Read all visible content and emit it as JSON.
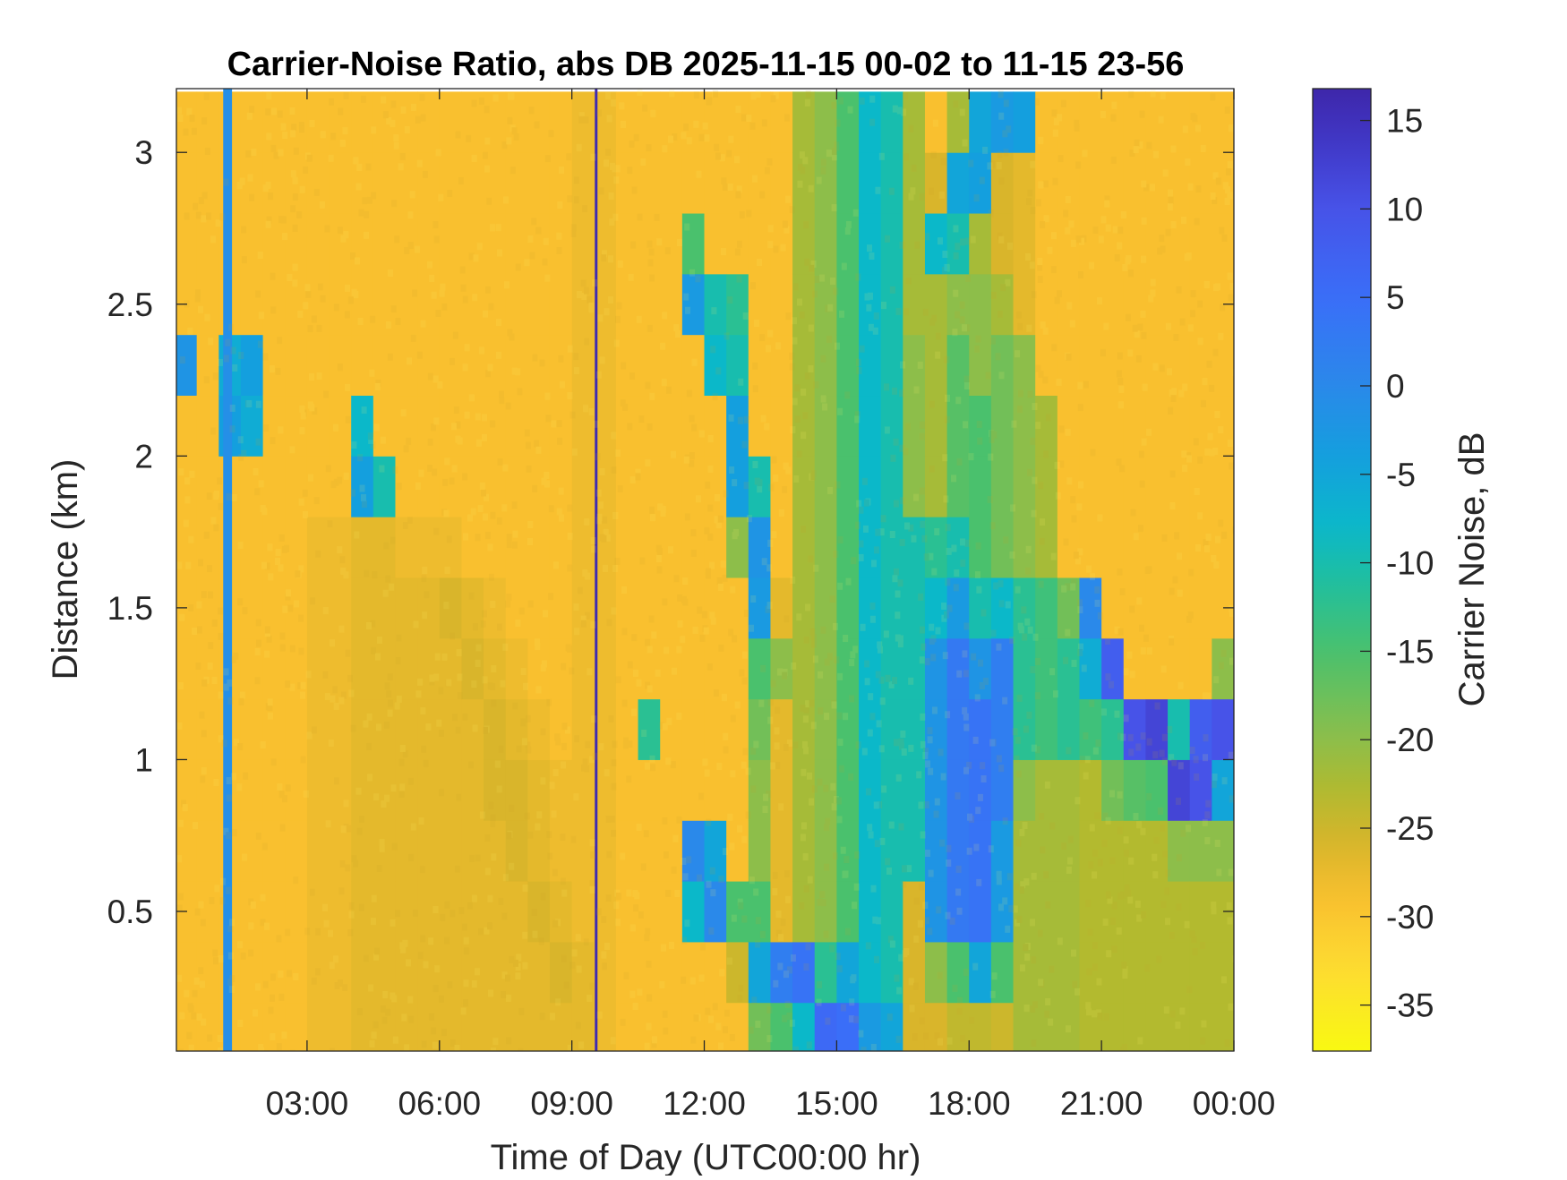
{
  "chart_data": {
    "type": "heatmap",
    "title": "Carrier-Noise Ratio, abs DB 2025-11-15 00-02 to 11-15 23-56",
    "xlabel": "Time of Day (UTC00:00 hr)",
    "ylabel": "Distance (km)",
    "colorbar_label": "Carrier Noise, dB",
    "colormap": "parula (reversed: yellow = low, dark blue = high)",
    "xlim_hr": [
      0.04,
      24.0
    ],
    "ylim_km": [
      0.04,
      3.21
    ],
    "clim_db": [
      -37.6,
      16.8
    ],
    "x_ticks": [
      3,
      6,
      9,
      12,
      15,
      18,
      21,
      24
    ],
    "x_tick_labels": [
      "03:00",
      "06:00",
      "09:00",
      "12:00",
      "15:00",
      "18:00",
      "21:00",
      "00:00"
    ],
    "y_ticks": [
      0.5,
      1,
      1.5,
      2,
      2.5,
      3
    ],
    "y_tick_labels": [
      "0.5",
      "1",
      "1.5",
      "2",
      "2.5",
      "3"
    ],
    "c_ticks": [
      15,
      10,
      5,
      0,
      -5,
      -10,
      -15,
      -20,
      -25,
      -30,
      -35
    ],
    "c_tick_labels": [
      "15",
      "10",
      "5",
      "0",
      "-5",
      "-10",
      "-15",
      "-20",
      "-25",
      "-30",
      "-35"
    ],
    "time_bin_hr": 0.5,
    "distance_bins_km": [
      0.1,
      0.3,
      0.5,
      0.7,
      0.9,
      1.1,
      1.3,
      1.5,
      1.7,
      1.9,
      2.1,
      2.3,
      2.5,
      2.7,
      2.9,
      3.1
    ],
    "z_by_time_db": [
      [
        -29,
        -29,
        -29,
        -29,
        -29,
        -29,
        -29,
        -29,
        -29,
        -29,
        -29,
        -2,
        -29,
        -29,
        -29,
        -29
      ],
      [
        -29,
        -29,
        -29,
        -29,
        -29,
        -29,
        -29,
        -29,
        -29,
        -29,
        -29,
        -29,
        -29,
        -29,
        -29,
        -29
      ],
      [
        -29,
        -29,
        -29,
        -29,
        -29,
        -29,
        -29,
        -29,
        -29,
        -29,
        -4,
        -6,
        -29,
        -29,
        -29,
        -29
      ],
      [
        -29,
        -29,
        -29,
        -29,
        -29,
        -29,
        -29,
        -29,
        -29,
        -29,
        -6,
        -4,
        -29,
        -29,
        -29,
        -29
      ],
      [
        -29,
        -29,
        -29,
        -29,
        -29,
        -29,
        -29,
        -29,
        -29,
        -29,
        -29,
        -29,
        -29,
        -29,
        -29,
        -29
      ],
      [
        -29,
        -29,
        -29,
        -29,
        -29,
        -29,
        -29,
        -29,
        -29,
        -29,
        -29,
        -29,
        -29,
        -29,
        -29,
        -29
      ],
      [
        -28,
        -28,
        -28,
        -28,
        -28,
        -28,
        -28,
        -28,
        -28,
        -29,
        -29,
        -29,
        -29,
        -29,
        -29,
        -29
      ],
      [
        -28,
        -28,
        -28,
        -28,
        -28,
        -28,
        -28,
        -28,
        -28,
        -29,
        -29,
        -29,
        -29,
        -29,
        -29,
        -29
      ],
      [
        -27,
        -27,
        -27,
        -27,
        -27,
        -27,
        -27,
        -27,
        -27,
        -4,
        -8,
        -29,
        -29,
        -29,
        -29,
        -29
      ],
      [
        -27,
        -27,
        -27,
        -27,
        -27,
        -27,
        -27,
        -27,
        -27,
        -10,
        -29,
        -29,
        -29,
        -29,
        -29,
        -29
      ],
      [
        -27,
        -27,
        -27,
        -27,
        -27,
        -27,
        -27,
        -27,
        -28,
        -29,
        -29,
        -29,
        -29,
        -29,
        -29,
        -29
      ],
      [
        -27,
        -27,
        -27,
        -27,
        -27,
        -27,
        -27,
        -27,
        -28,
        -29,
        -29,
        -29,
        -29,
        -29,
        -29,
        -29
      ],
      [
        -27,
        -27,
        -27,
        -27,
        -27,
        -27,
        -27,
        -26,
        -28,
        -29,
        -29,
        -29,
        -29,
        -29,
        -29,
        -29
      ],
      [
        -27,
        -27,
        -27,
        -27,
        -27,
        -27,
        -26,
        -27,
        -29,
        -29,
        -29,
        -29,
        -29,
        -29,
        -29,
        -29
      ],
      [
        -27,
        -27,
        -27,
        -27,
        -26,
        -26,
        -27,
        -28,
        -29,
        -29,
        -29,
        -29,
        -29,
        -29,
        -29,
        -29
      ],
      [
        -27,
        -27,
        -27,
        -26,
        -26,
        -27,
        -28,
        -29,
        -29,
        -29,
        -29,
        -29,
        -29,
        -29,
        -29,
        -29
      ],
      [
        -27,
        -27,
        -26,
        -27,
        -27,
        -28,
        -29,
        -29,
        -29,
        -29,
        -29,
        -29,
        -29,
        -29,
        -29,
        -29
      ],
      [
        -27,
        -26,
        -27,
        -28,
        -28,
        -29,
        -29,
        -29,
        -29,
        -29,
        -29,
        -29,
        -29,
        -29,
        -29,
        -29
      ],
      [
        -27,
        -27,
        -28,
        -28,
        -28,
        -28,
        -28,
        -28,
        -28,
        -28,
        -28,
        -28,
        -28,
        -28,
        -28,
        -28
      ],
      [
        -28,
        -28,
        -28,
        -28,
        -28,
        -28,
        -28,
        -28,
        -28,
        -28,
        -28,
        -28,
        -28,
        -28,
        -28,
        -28
      ],
      [
        -29,
        -29,
        -29,
        -29,
        -29,
        -29,
        -29,
        -29,
        -29,
        -29,
        -29,
        -29,
        -29,
        -29,
        -29,
        -29
      ],
      [
        -29,
        -29,
        -29,
        -29,
        -29,
        -12,
        -29,
        -29,
        -29,
        -29,
        -29,
        -29,
        -29,
        -29,
        -29,
        -29
      ],
      [
        -29,
        -29,
        -29,
        -29,
        -29,
        -29,
        -29,
        -29,
        -29,
        -29,
        -29,
        -29,
        -29,
        -29,
        -29,
        -29
      ],
      [
        -29,
        -29,
        -8,
        0,
        -29,
        -29,
        -29,
        -29,
        -29,
        -29,
        -29,
        -29,
        -3,
        -15,
        -29,
        -29
      ],
      [
        -29,
        -29,
        0,
        -5,
        -29,
        -29,
        -29,
        -29,
        -29,
        -29,
        -29,
        -8,
        -10,
        -29,
        -29,
        -29
      ],
      [
        -29,
        -25,
        -15,
        -29,
        -29,
        -29,
        -29,
        -29,
        -20,
        -4,
        -4,
        -10,
        -12,
        -29,
        -29,
        -29
      ],
      [
        -18,
        -5,
        -15,
        -20,
        -20,
        -18,
        -15,
        -3,
        -2,
        -10,
        -29,
        -29,
        -29,
        -29,
        -29,
        -29
      ],
      [
        -15,
        2,
        -27,
        -27,
        -27,
        -27,
        -20,
        -27,
        -29,
        -29,
        -29,
        -29,
        -29,
        -29,
        -29,
        -29
      ],
      [
        -8,
        4,
        -22,
        -22,
        -22,
        -22,
        -22,
        -22,
        -22,
        -22,
        -22,
        -22,
        -22,
        -22,
        -22,
        -22
      ],
      [
        6,
        -12,
        -20,
        -20,
        -20,
        -20,
        -20,
        -20,
        -20,
        -20,
        -20,
        -20,
        -20,
        -20,
        -20,
        -20
      ],
      [
        5,
        -5,
        -15,
        -15,
        -15,
        -15,
        -15,
        -15,
        -15,
        -15,
        -15,
        -15,
        -15,
        -15,
        -15,
        -15
      ],
      [
        -3,
        -8,
        -8,
        -8,
        -8,
        -8,
        -8,
        -8,
        -8,
        -8,
        -8,
        -8,
        -8,
        -8,
        -8,
        -8
      ],
      [
        -5,
        -10,
        -10,
        -10,
        -10,
        -10,
        -10,
        -10,
        -10,
        -10,
        -10,
        -10,
        -10,
        -10,
        -10,
        -10
      ],
      [
        -26,
        -26,
        -26,
        -10,
        -10,
        -10,
        -10,
        -10,
        -10,
        -20,
        -20,
        -20,
        -22,
        -22,
        -22,
        -22
      ],
      [
        -26,
        -20,
        -2,
        -2,
        -2,
        -2,
        -2,
        -8,
        -12,
        -22,
        -22,
        -22,
        -22,
        -8,
        -26,
        -29
      ],
      [
        -24,
        -15,
        3,
        3,
        3,
        3,
        3,
        -3,
        -10,
        -16,
        -16,
        -16,
        -20,
        -10,
        -5,
        -22
      ],
      [
        -24,
        -5,
        4,
        4,
        4,
        4,
        -2,
        -10,
        -15,
        -15,
        -15,
        -20,
        -20,
        -22,
        -4,
        -5
      ],
      [
        -25,
        -15,
        -3,
        -3,
        2,
        2,
        2,
        -8,
        -18,
        -18,
        -18,
        -18,
        -22,
        -26,
        -26,
        -3
      ],
      [
        -22,
        -22,
        -22,
        -22,
        -20,
        -12,
        -12,
        -12,
        -20,
        -20,
        -20,
        -20,
        -27,
        -27,
        -27,
        -4
      ],
      [
        -22,
        -22,
        -22,
        -22,
        -22,
        -14,
        -14,
        -14,
        -22,
        -22,
        -22,
        -29,
        -29,
        -29,
        -29,
        -29
      ],
      [
        -22,
        -22,
        -22,
        -22,
        -22,
        -12,
        -12,
        -18,
        -29,
        -29,
        -29,
        -29,
        -29,
        -29,
        -29,
        -29
      ],
      [
        -23,
        -23,
        -23,
        -23,
        -23,
        -14,
        -6,
        0,
        -29,
        -29,
        -29,
        -29,
        -29,
        -29,
        -29,
        -29
      ],
      [
        -23,
        -23,
        -23,
        -23,
        -18,
        -12,
        8,
        -29,
        -29,
        -29,
        -29,
        -29,
        -29,
        -29,
        -29,
        -29
      ],
      [
        -23,
        -23,
        -23,
        -23,
        -16,
        10,
        -29,
        -29,
        -29,
        -29,
        -29,
        -29,
        -29,
        -29,
        -29,
        -29
      ],
      [
        -23,
        -23,
        -23,
        -23,
        -15,
        12,
        -29,
        -29,
        -29,
        -29,
        -29,
        -29,
        -29,
        -29,
        -29,
        -29
      ],
      [
        -23,
        -23,
        -23,
        -20,
        12,
        -10,
        -29,
        -29,
        -29,
        -29,
        -29,
        -29,
        -29,
        -29,
        -29,
        -29
      ],
      [
        -23,
        -23,
        -23,
        -20,
        10,
        8,
        -29,
        -29,
        -29,
        -29,
        -29,
        -29,
        -29,
        -29,
        -29,
        -29
      ],
      [
        -23,
        -23,
        -23,
        -20,
        -5,
        10,
        -20,
        -29,
        -29,
        -29,
        -29,
        -29,
        -29,
        -29,
        -29,
        -29
      ]
    ],
    "vertical_streaks": [
      {
        "time_hr": 1.2,
        "width_hr": 0.2,
        "value_db": -1
      },
      {
        "time_hr": 9.55,
        "width_hr": 0.06,
        "value_db": 16
      }
    ],
    "grid": false
  }
}
